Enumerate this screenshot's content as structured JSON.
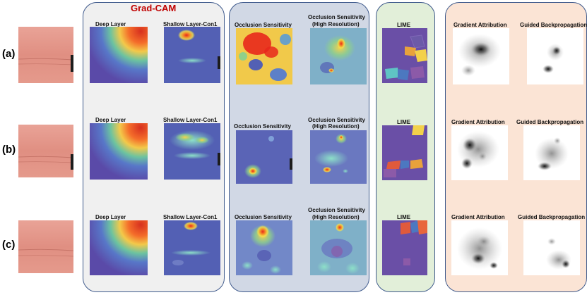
{
  "figure": {
    "gradcam_title": "Grad-CAM",
    "colors": {
      "gradcam_bg": "#f0f0f0",
      "occlusion_bg": "#d1d8e5",
      "lime_bg": "#e2efd9",
      "gradient_bg": "#fbe4d5",
      "border": "#3f5a8c",
      "title": "#c00000"
    },
    "rows": [
      {
        "label": "(a)",
        "deep": "Deep Layer",
        "shallow": "Shallow Layer-Con1",
        "occlusion": "Occlusion Sensitivity",
        "occlusion_hr": [
          "Occlusion Sensitivity",
          "(High Resolution)"
        ],
        "lime": "LIME",
        "gradient": "Gradient Attribution",
        "guided": "Guided Backpropagation"
      },
      {
        "label": "(b)",
        "deep": "Deep Layer",
        "shallow": "Shallow Layer-Con1",
        "occlusion": "Occlusion Sensitivity",
        "occlusion_hr": [
          "Occlusion Sensitivity",
          "(High Resolution)"
        ],
        "lime": "LIME",
        "gradient": "Gradient Attribution",
        "guided": "Guided Backpropagation"
      },
      {
        "label": "(c)",
        "deep": "Deep Layer",
        "shallow": "Shallow Layer-Con1",
        "occlusion": "Occlusion Sensitivity",
        "occlusion_hr": [
          "Occlusion Sensitivity",
          "(High Resolution)"
        ],
        "lime": "LIME",
        "gradient": "Gradient Attribution",
        "guided": "Guided Backpropagation"
      }
    ]
  }
}
